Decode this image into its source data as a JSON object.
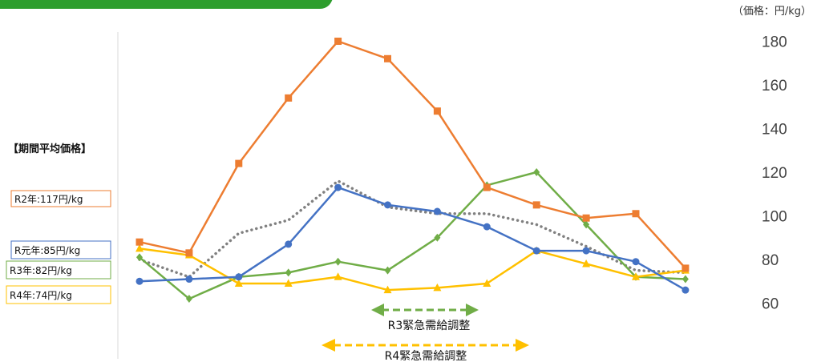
{
  "chart_data": {
    "type": "line",
    "unit_label": "（価格：円/kg）",
    "y_ticks": [
      60,
      80,
      100,
      120,
      140,
      160,
      180
    ],
    "ylim": [
      60,
      180
    ],
    "x_count": 12,
    "legend_title": "【期間平均価格】",
    "series": [
      {
        "name": "R2年:117円/kg",
        "color": "#ED7D31",
        "marker": "square",
        "dashed": false,
        "values": [
          88,
          83,
          124,
          154,
          180,
          172,
          148,
          113,
          105,
          99,
          101,
          76
        ]
      },
      {
        "name": "R元年:85円/kg",
        "color": "#4472C4",
        "marker": "circle",
        "dashed": false,
        "values": [
          70,
          71,
          72,
          87,
          113,
          105,
          102,
          95,
          84,
          84,
          79,
          66
        ]
      },
      {
        "name": "R3年:82円/kg",
        "color": "#70AD47",
        "marker": "diamond",
        "dashed": false,
        "values": [
          81,
          62,
          72,
          74,
          79,
          75,
          90,
          114,
          120,
          96,
          72,
          71
        ]
      },
      {
        "name": "R4年:74円/kg",
        "color": "#FFC000",
        "marker": "triangle",
        "dashed": false,
        "values": [
          85,
          82,
          69,
          69,
          72,
          66,
          67,
          69,
          84,
          78,
          72,
          75
        ]
      },
      {
        "name": "",
        "color": "#808080",
        "marker": "none",
        "dashed": true,
        "values": [
          80,
          72,
          92,
          98,
          116,
          104,
          101,
          101,
          96,
          86,
          75,
          74
        ]
      }
    ],
    "annotations": [
      {
        "text": "R3緊急需給調整",
        "color": "#70AD47"
      },
      {
        "text": "R4緊急需給調整",
        "color": "#FFC000"
      }
    ],
    "header_bar_color": "#2E9E2E"
  }
}
